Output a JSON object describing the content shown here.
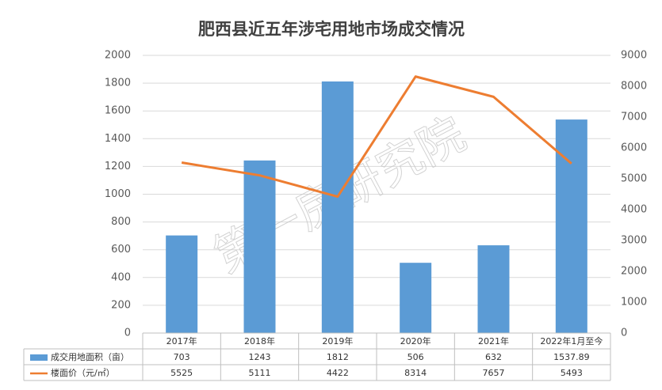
{
  "chart_data": {
    "type": "bar_line_table",
    "title": "肥西县近五年涉宅用地市场成交情况",
    "categories": [
      "2017年",
      "2018年",
      "2019年",
      "2020年",
      "2021年",
      "2022年1月至今"
    ],
    "series": [
      {
        "name": "成交用地面积（亩）",
        "color": "#5b9bd5",
        "type": "bar",
        "values": [
          703,
          1243,
          1812,
          506,
          632,
          1537.89
        ]
      },
      {
        "name": "楼面价（元/㎡）",
        "color": "#ed7d31",
        "type": "line",
        "axis": "y2",
        "values": [
          5525,
          5111,
          4422,
          8314,
          7657,
          5493
        ]
      }
    ],
    "ylim": [
      0,
      2000
    ],
    "yticks": [
      0,
      200,
      400,
      600,
      800,
      1000,
      1200,
      1400,
      1600,
      1800,
      2000
    ],
    "y2lim": [
      0,
      9000
    ],
    "y2ticks": [
      0,
      1000,
      2000,
      3000,
      4000,
      5000,
      6000,
      7000,
      8000,
      9000
    ],
    "grid": true,
    "watermark": "第一房研究院"
  }
}
